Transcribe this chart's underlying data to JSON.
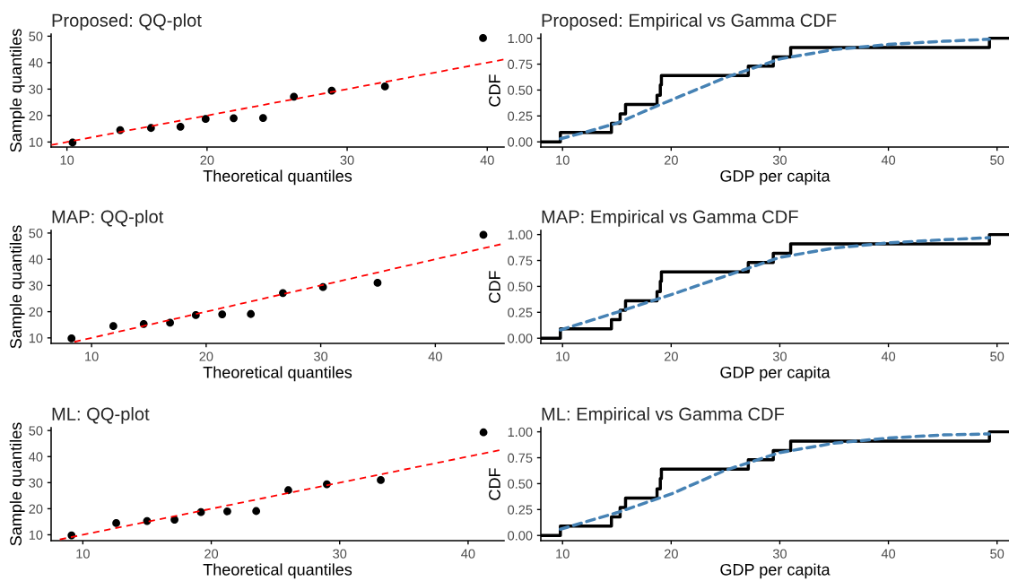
{
  "chart_data": [
    {
      "type": "scatter",
      "title": "Proposed: QQ-plot",
      "xlabel": "Theoretical quantiles",
      "ylabel": "Sample quantiles",
      "xlim": [
        8.87,
        41.2
      ],
      "ylim": [
        8.1,
        50.8
      ],
      "xticks": [
        10,
        20,
        30,
        40
      ],
      "yticks": [
        10,
        20,
        30,
        40,
        50
      ],
      "series": [
        {
          "color": "#000000",
          "marker": "circle",
          "x": [
            10.4,
            13.8,
            16.0,
            18.1,
            19.9,
            21.9,
            24.0,
            26.2,
            28.9,
            32.7,
            39.7
          ],
          "values": [
            9.8,
            14.5,
            15.3,
            15.8,
            18.7,
            19.0,
            19.1,
            27.1,
            29.4,
            31.0,
            49.3
          ]
        },
        {
          "type": "line",
          "color": "#ff0000",
          "line_style": "dashed",
          "x": [
            8.9,
            41.2
          ],
          "values": [
            8.9,
            41.2
          ]
        }
      ]
    },
    {
      "type": "step",
      "title": "Proposed: Empirical vs Gamma CDF",
      "xlabel": "GDP per capita",
      "ylabel": "CDF",
      "xlim": [
        8.0,
        51.1
      ],
      "ylim": [
        -0.05,
        1.04
      ],
      "xticks": [
        10,
        20,
        30,
        40,
        50
      ],
      "yticks": [
        {
          "value": 0,
          "label": "0.00"
        },
        {
          "value": 0.25,
          "label": "0.25"
        },
        {
          "value": 0.5,
          "label": "0.50"
        },
        {
          "value": 0.75,
          "label": "0.75"
        },
        {
          "value": 1,
          "label": "1.00"
        }
      ],
      "series": [
        {
          "type": "line",
          "color": "#4682b4",
          "line_style": "dashed",
          "x": [
            9.8,
            12,
            15,
            19,
            25,
            30,
            35,
            40,
            45,
            49.3
          ],
          "values": [
            0.03,
            0.09,
            0.18,
            0.36,
            0.62,
            0.8,
            0.89,
            0.94,
            0.97,
            0.99
          ]
        },
        {
          "color": "#000000",
          "line_style": "solid",
          "x": [
            8.0,
            9.8,
            14.5,
            15.3,
            15.8,
            18.7,
            19.0,
            19.1,
            27.1,
            29.4,
            31.0,
            49.3,
            51.1
          ],
          "values": [
            0,
            0.09,
            0.18,
            0.27,
            0.36,
            0.45,
            0.55,
            0.64,
            0.73,
            0.82,
            0.91,
            1.0,
            1.0
          ]
        }
      ]
    },
    {
      "type": "scatter",
      "title": "MAP: QQ-plot",
      "xlabel": "Theoretical quantiles",
      "ylabel": "Sample quantiles",
      "xlim": [
        6.47,
        46.0
      ],
      "ylim": [
        7.9,
        51.0
      ],
      "xticks": [
        10,
        20,
        30,
        40
      ],
      "yticks": [
        10,
        20,
        30,
        40,
        50
      ],
      "series": [
        {
          "color": "#000000",
          "marker": "circle",
          "x": [
            8.25,
            11.9,
            14.55,
            16.85,
            19.1,
            21.4,
            23.9,
            26.7,
            30.2,
            34.96,
            44.2
          ],
          "values": [
            9.8,
            14.5,
            15.3,
            15.8,
            18.7,
            19.0,
            19.1,
            27.1,
            29.4,
            31.0,
            49.3
          ]
        },
        {
          "type": "line",
          "color": "#ff0000",
          "line_style": "dashed",
          "x": [
            8.5,
            46.0
          ],
          "values": [
            8.5,
            46.0
          ]
        }
      ]
    },
    {
      "type": "step",
      "title": "MAP: Empirical vs Gamma CDF",
      "xlabel": "GDP per capita",
      "ylabel": "CDF",
      "xlim": [
        8.0,
        51.1
      ],
      "ylim": [
        -0.05,
        1.04
      ],
      "xticks": [
        10,
        20,
        30,
        40,
        50
      ],
      "yticks": [
        {
          "value": 0,
          "label": "0.00"
        },
        {
          "value": 0.25,
          "label": "0.25"
        },
        {
          "value": 0.5,
          "label": "0.50"
        },
        {
          "value": 0.75,
          "label": "0.75"
        },
        {
          "value": 1,
          "label": "1.00"
        }
      ],
      "series": [
        {
          "type": "line",
          "color": "#4682b4",
          "line_style": "dashed",
          "x": [
            9.8,
            15,
            20,
            25,
            30,
            35,
            40,
            45,
            49.3
          ],
          "values": [
            0.08,
            0.25,
            0.42,
            0.6,
            0.78,
            0.87,
            0.92,
            0.95,
            0.97
          ]
        },
        {
          "color": "#000000",
          "line_style": "solid",
          "x": [
            8.0,
            9.8,
            14.5,
            15.3,
            15.8,
            18.7,
            19.0,
            19.1,
            27.1,
            29.4,
            31.0,
            49.3,
            51.1
          ],
          "values": [
            0,
            0.09,
            0.18,
            0.27,
            0.36,
            0.45,
            0.55,
            0.64,
            0.73,
            0.82,
            0.91,
            1.0,
            1.0
          ]
        }
      ]
    },
    {
      "type": "scatter",
      "title": "ML: QQ-plot",
      "xlabel": "Theoretical quantiles",
      "ylabel": "Sample quantiles",
      "xlim": [
        7.53,
        42.8
      ],
      "ylim": [
        7.75,
        51.1
      ],
      "xticks": [
        10,
        20,
        30,
        40
      ],
      "yticks": [
        10,
        20,
        30,
        40,
        50
      ],
      "series": [
        {
          "color": "#000000",
          "marker": "circle",
          "x": [
            9.12,
            12.6,
            15.0,
            17.14,
            19.2,
            21.25,
            23.5,
            26.0,
            29.0,
            33.2,
            41.2
          ],
          "values": [
            9.8,
            14.5,
            15.3,
            15.8,
            18.7,
            19.0,
            19.1,
            27.1,
            29.4,
            31.0,
            49.3
          ]
        },
        {
          "type": "line",
          "color": "#ff0000",
          "line_style": "dashed",
          "x": [
            8.2,
            42.8
          ],
          "values": [
            8.2,
            42.8
          ]
        }
      ]
    },
    {
      "type": "step",
      "title": "ML: Empirical vs Gamma CDF",
      "xlabel": "GDP per capita",
      "ylabel": "CDF",
      "xlim": [
        8.0,
        51.1
      ],
      "ylim": [
        -0.05,
        1.04
      ],
      "xticks": [
        10,
        20,
        30,
        40,
        50
      ],
      "yticks": [
        {
          "value": 0,
          "label": "0.00"
        },
        {
          "value": 0.25,
          "label": "0.25"
        },
        {
          "value": 0.5,
          "label": "0.50"
        },
        {
          "value": 0.75,
          "label": "0.75"
        },
        {
          "value": 1,
          "label": "1.00"
        }
      ],
      "series": [
        {
          "type": "line",
          "color": "#4682b4",
          "line_style": "dashed",
          "x": [
            9.8,
            15,
            20,
            25,
            30,
            35,
            40,
            45,
            49.3
          ],
          "values": [
            0.06,
            0.22,
            0.4,
            0.63,
            0.8,
            0.89,
            0.94,
            0.97,
            0.98
          ]
        },
        {
          "color": "#000000",
          "line_style": "solid",
          "x": [
            8.0,
            9.8,
            14.5,
            15.3,
            15.8,
            18.7,
            19.0,
            19.1,
            27.1,
            29.4,
            31.0,
            49.3,
            51.1
          ],
          "values": [
            0,
            0.09,
            0.18,
            0.27,
            0.36,
            0.45,
            0.55,
            0.64,
            0.73,
            0.82,
            0.91,
            1.0,
            1.0
          ]
        }
      ]
    }
  ]
}
